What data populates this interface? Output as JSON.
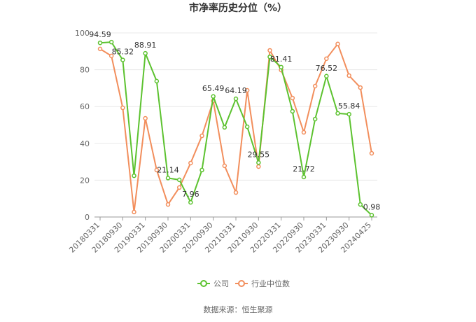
{
  "chart_data": {
    "type": "line",
    "title": "市净率历史分位（%）",
    "source": "数据来源：恒生聚源",
    "categories": [
      "20180331",
      null,
      "20180930",
      null,
      "20190331",
      null,
      "20190930",
      null,
      "20200331",
      null,
      "20200930",
      null,
      "20210331",
      null,
      "20210930",
      null,
      "20220331",
      null,
      "20220930",
      null,
      "20230331",
      null,
      "20230930",
      null,
      "20240425"
    ],
    "series": [
      {
        "name": "公司",
        "color": "#5cc22f",
        "values": [
          94.59,
          95,
          85.32,
          22.4,
          88.91,
          73.8,
          21.14,
          20.2,
          7.96,
          25.5,
          65.49,
          48.7,
          64.19,
          49,
          29.55,
          87,
          81.41,
          57.4,
          21.72,
          53.2,
          76.52,
          56.3,
          55.84,
          6.8,
          0.98
        ],
        "value_labels": [
          "94.59",
          null,
          "85.32",
          null,
          "88.91",
          null,
          "21.14",
          null,
          "7.96",
          null,
          "65.49",
          null,
          "64.19",
          null,
          "29.55",
          null,
          "81.41",
          null,
          "21.72",
          null,
          "76.52",
          null,
          "55.84",
          null,
          "0.98"
        ]
      },
      {
        "name": "行业中位数",
        "color": "#f28e5c",
        "values": [
          91.3,
          87.5,
          59.3,
          2.7,
          53.6,
          25.5,
          6.8,
          16,
          29.3,
          44.1,
          63.1,
          27.8,
          13.3,
          68.8,
          27.4,
          90.5,
          79.8,
          64.6,
          46,
          71.1,
          86,
          94,
          76.8,
          70.3,
          34.6
        ]
      }
    ],
    "ylim": [
      0,
      100
    ],
    "yticks": [
      0,
      20,
      40,
      60,
      80,
      100
    ],
    "grid": true,
    "legend": "bottom"
  }
}
